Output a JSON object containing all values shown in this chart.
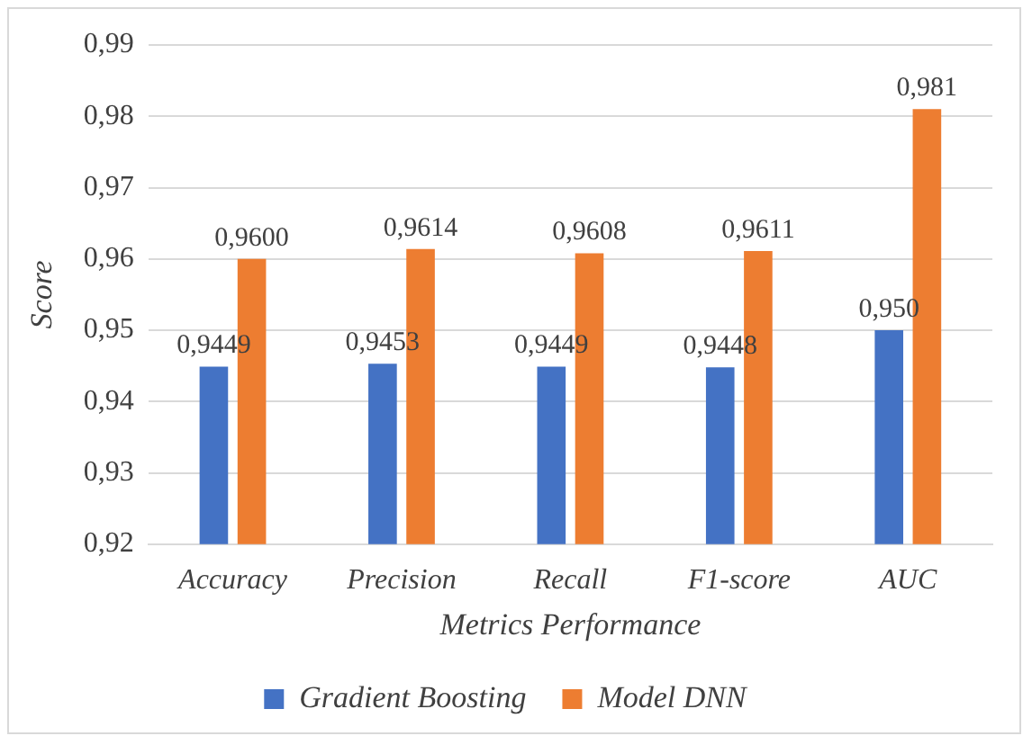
{
  "chart_data": {
    "type": "bar",
    "xlabel": "Metrics Performance",
    "ylabel": "Score",
    "categories": [
      "Accuracy",
      "Precision",
      "Recall",
      "F1-score",
      "AUC"
    ],
    "series": [
      {
        "name": "Gradient Boosting",
        "color": "#4472c4",
        "values": [
          0.9449,
          0.9453,
          0.9449,
          0.9448,
          0.95
        ],
        "value_labels": [
          "0,9449",
          "0,9453",
          "0,9449",
          "0,9448",
          "0,950"
        ]
      },
      {
        "name": "Model DNN",
        "color": "#ed7d31",
        "values": [
          0.96,
          0.9614,
          0.9608,
          0.9611,
          0.981
        ],
        "value_labels": [
          "0,9600",
          "0,9614",
          "0,9608",
          "0,9611",
          "0,981"
        ]
      }
    ],
    "ylim": [
      0.92,
      0.99
    ],
    "yticks": [
      {
        "value": 0.92,
        "label": "0,92"
      },
      {
        "value": 0.93,
        "label": "0,93"
      },
      {
        "value": 0.94,
        "label": "0,94"
      },
      {
        "value": 0.95,
        "label": "0,95"
      },
      {
        "value": 0.96,
        "label": "0,96"
      },
      {
        "value": 0.97,
        "label": "0,97"
      },
      {
        "value": 0.98,
        "label": "0,98"
      },
      {
        "value": 0.99,
        "label": "0,99"
      }
    ],
    "grid": "y",
    "legend": "bottom"
  }
}
